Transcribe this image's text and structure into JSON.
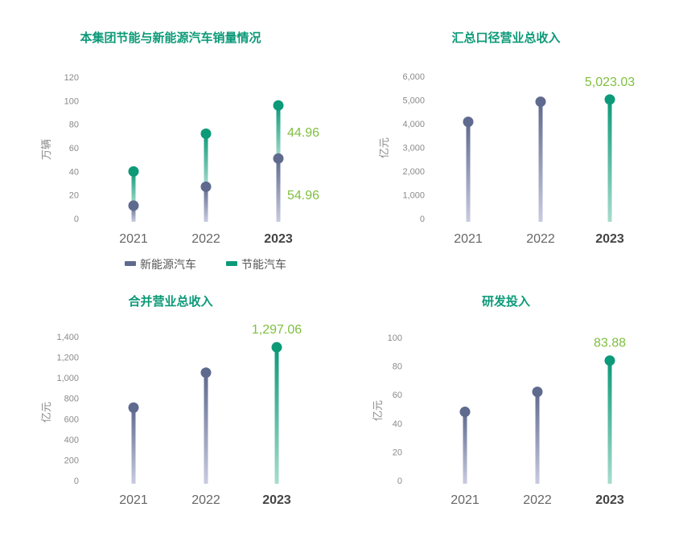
{
  "colors": {
    "title": "#0c9a78",
    "series_dark": "#5f6a8e",
    "series_dark_light": "#c9cbe0",
    "series_green": "#0c9a78",
    "series_green_light": "#a9dccd",
    "data_label": "#7fbf3f"
  },
  "chart_data": [
    {
      "type": "lollipop",
      "title": "本集团节能与新能源汽车销量情况",
      "ylabel": "万辆",
      "ylim": [
        0,
        120
      ],
      "yticks": [
        "0",
        "20",
        "40",
        "60",
        "80",
        "100",
        "120"
      ],
      "categories": [
        "2021",
        "2022",
        "2023"
      ],
      "series": [
        {
          "name": "新能源汽车",
          "values": [
            11,
            27,
            51
          ]
        },
        {
          "name": "节能汽车",
          "values": [
            40,
            72,
            96
          ]
        }
      ],
      "data_labels": [
        "44.96",
        "54.96"
      ],
      "legend": [
        "新能源汽车",
        "节能汽车"
      ]
    },
    {
      "type": "lollipop",
      "title": "汇总口径营业总收入",
      "ylabel": "亿元",
      "ylim": [
        0,
        6000
      ],
      "yticks": [
        "0",
        "1,000",
        "2,000",
        "3,000",
        "4,000",
        "5,000",
        "6,000"
      ],
      "categories": [
        "2021",
        "2022",
        "2023"
      ],
      "values": [
        4080,
        4930,
        5023.03
      ],
      "data_labels": [
        "5,023.03"
      ]
    },
    {
      "type": "lollipop",
      "title": "合并营业总收入",
      "ylabel": "亿元",
      "ylim": [
        0,
        1400
      ],
      "yticks": [
        "0",
        "200",
        "400",
        "600",
        "800",
        "1,000",
        "1,200",
        "1,400"
      ],
      "categories": [
        "2021",
        "2022",
        "2023"
      ],
      "values": [
        710,
        1050,
        1297.06
      ],
      "data_labels": [
        "1,297.06"
      ]
    },
    {
      "type": "lollipop",
      "title": "研发投入",
      "ylabel": "亿元",
      "ylim": [
        0,
        100
      ],
      "yticks": [
        "0",
        "20",
        "40",
        "60",
        "80",
        "100"
      ],
      "categories": [
        "2021",
        "2022",
        "2023"
      ],
      "values": [
        48,
        62,
        83.88
      ],
      "data_labels": [
        "83.88"
      ]
    }
  ]
}
